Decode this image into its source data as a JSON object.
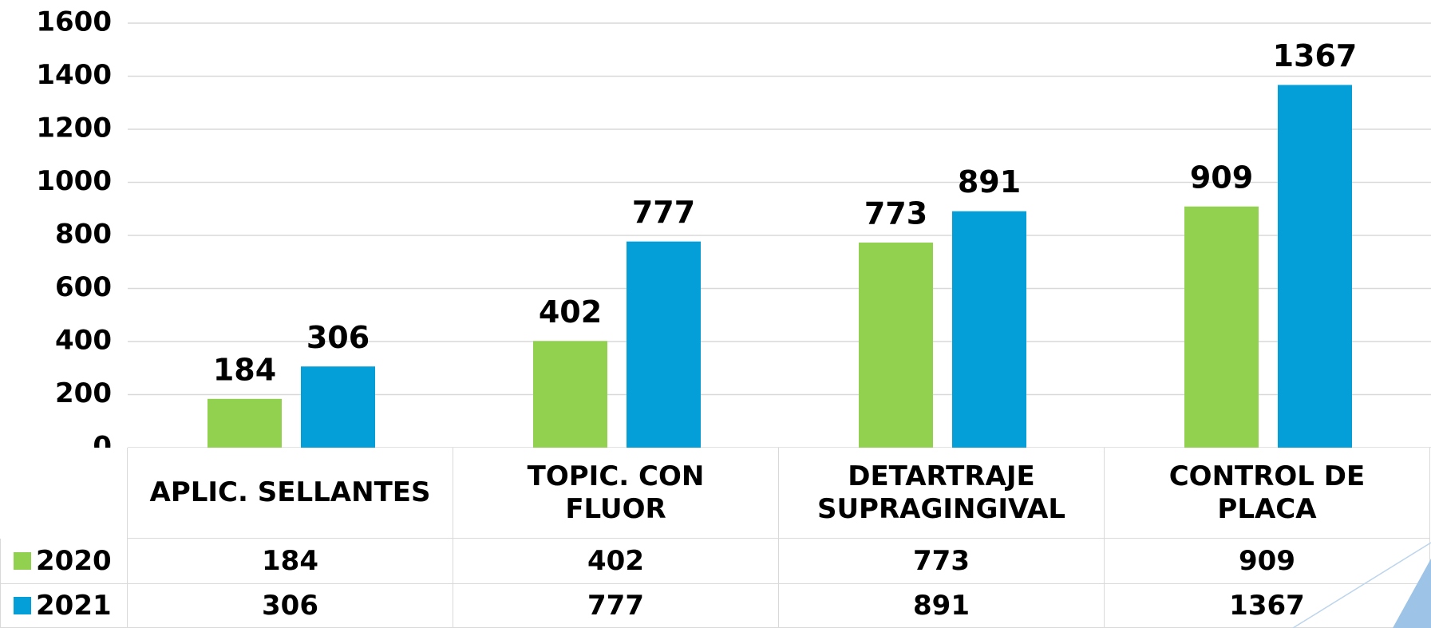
{
  "chart_data": {
    "type": "bar",
    "categories": [
      "APLIC. SELLANTES",
      "TOPIC. CON\nFLUOR",
      "DETARTRAJE\nSUPRAGINGIVAL",
      "CONTROL DE\nPLACA"
    ],
    "series": [
      {
        "name": "2020",
        "color": "#92d050",
        "values": [
          184,
          402,
          773,
          909
        ]
      },
      {
        "name": "2021",
        "color": "#049fd9",
        "values": [
          306,
          777,
          891,
          1367
        ]
      }
    ],
    "ylim": [
      0,
      1600
    ],
    "yticks": [
      0,
      200,
      400,
      600,
      800,
      1000,
      1200,
      1400,
      1600
    ],
    "grid": true
  }
}
